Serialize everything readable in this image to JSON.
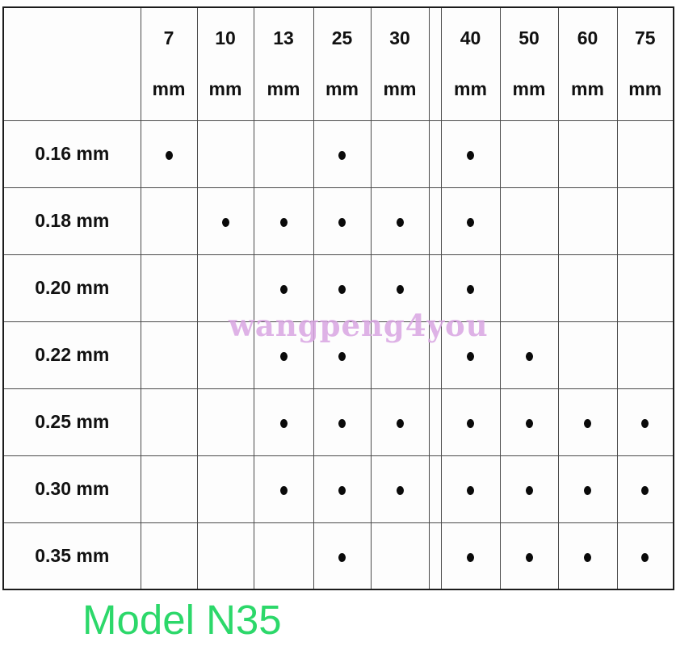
{
  "chart_data": {
    "type": "table",
    "column_unit": "mm",
    "columns": [
      "7",
      "10",
      "13",
      "25",
      "30",
      "40",
      "50",
      "60",
      "75"
    ],
    "rows": [
      {
        "label": "0.16 mm",
        "available": [
          "7",
          "25",
          "40"
        ]
      },
      {
        "label": "0.18 mm",
        "available": [
          "10",
          "13",
          "25",
          "30",
          "40"
        ]
      },
      {
        "label": "0.20 mm",
        "available": [
          "13",
          "25",
          "30",
          "40"
        ]
      },
      {
        "label": "0.22 mm",
        "available": [
          "13",
          "25",
          "40",
          "50"
        ]
      },
      {
        "label": "0.25 mm",
        "available": [
          "13",
          "25",
          "30",
          "40",
          "50",
          "60",
          "75"
        ]
      },
      {
        "label": "0.30 mm",
        "available": [
          "13",
          "25",
          "30",
          "40",
          "50",
          "60",
          "75"
        ]
      },
      {
        "label": "0.35 mm",
        "available": [
          "25",
          "40",
          "50",
          "60",
          "75"
        ]
      }
    ],
    "marker_glyph": "●",
    "legend_position": "none",
    "grid": true
  },
  "watermark": {
    "text": "wangpeng4you",
    "color": "#d9a5e2"
  },
  "caption": {
    "text": "Model N35",
    "color": "#2cd86a"
  },
  "colors": {
    "grid": "#4a4a4a",
    "border": "#1c1c1c",
    "text": "#111111",
    "dot": "#0a0a0a",
    "background": "#ffffff"
  }
}
